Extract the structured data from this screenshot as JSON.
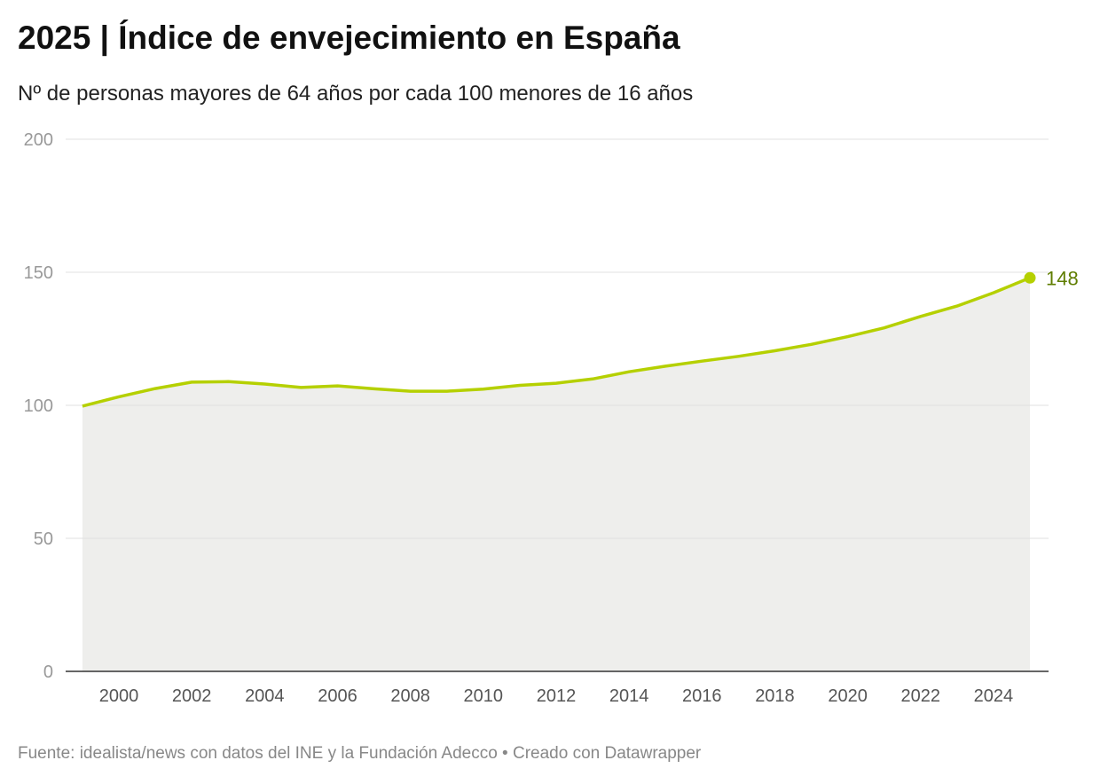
{
  "title": "2025 | Índice de envejecimiento en España",
  "subtitle": "Nº de personas mayores de 64 años por cada 100 menores de 16 años",
  "footer": "Fuente: idealista/news con datos del INE y la Fundación Adecco • Creado con Datawrapper",
  "colors": {
    "line": "#b5d000",
    "area": "#eeeeec",
    "label": "#5f7d00",
    "grid": "#e0e0e0",
    "tick": "#999999"
  },
  "chart_data": {
    "type": "area",
    "x": [
      1999,
      2000,
      2001,
      2002,
      2003,
      2004,
      2005,
      2006,
      2007,
      2008,
      2009,
      2010,
      2011,
      2012,
      2013,
      2014,
      2015,
      2016,
      2017,
      2018,
      2019,
      2020,
      2021,
      2022,
      2023,
      2024,
      2025
    ],
    "values": [
      99.7,
      103.2,
      106.3,
      108.7,
      108.9,
      108.0,
      106.7,
      107.3,
      106.2,
      105.3,
      105.3,
      106.1,
      107.5,
      108.3,
      109.9,
      112.6,
      114.7,
      116.6,
      118.4,
      120.5,
      122.9,
      125.8,
      129.1,
      133.4,
      137.3,
      142.3,
      147.9
    ],
    "ylim": [
      0,
      200
    ],
    "yticks": [
      "0",
      "50",
      "100",
      "150",
      "200"
    ],
    "xticks": [
      "2000",
      "2002",
      "2004",
      "2006",
      "2008",
      "2010",
      "2012",
      "2014",
      "2016",
      "2018",
      "2020",
      "2022",
      "2024"
    ],
    "end_label": "148",
    "grid": true
  }
}
